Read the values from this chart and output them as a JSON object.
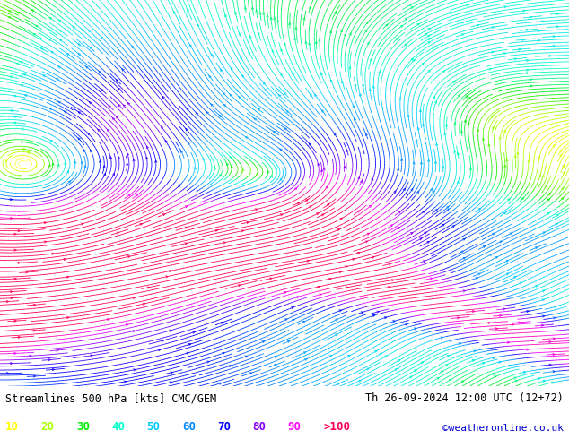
{
  "title_left": "Streamlines 500 hPa [kts] CMC/GEM",
  "title_right": "Th 26-09-2024 12:00 UTC (12+72)",
  "credit": "©weatheronline.co.uk",
  "legend_values": [
    "10",
    "20",
    "30",
    "40",
    "50",
    "60",
    "70",
    "80",
    "90",
    ">100"
  ],
  "legend_colors": [
    "#ffff00",
    "#aaff00",
    "#00ee00",
    "#00ffcc",
    "#00ccff",
    "#0088ff",
    "#0000ff",
    "#8800ff",
    "#ff00ff",
    "#ff0055"
  ],
  "bg_color": "#ffffff",
  "text_color": "#000000",
  "figsize": [
    6.34,
    4.9
  ],
  "dpi": 100,
  "colormap_colors": [
    [
      0.0,
      "#ffffff"
    ],
    [
      0.09,
      "#ffff00"
    ],
    [
      0.18,
      "#aaff00"
    ],
    [
      0.27,
      "#00ee00"
    ],
    [
      0.36,
      "#00ffcc"
    ],
    [
      0.45,
      "#00ccff"
    ],
    [
      0.55,
      "#0088ff"
    ],
    [
      0.64,
      "#0000ff"
    ],
    [
      0.73,
      "#8800ff"
    ],
    [
      0.82,
      "#ff00ff"
    ],
    [
      1.0,
      "#ff0055"
    ]
  ],
  "vmin": 0,
  "vmax": 110
}
